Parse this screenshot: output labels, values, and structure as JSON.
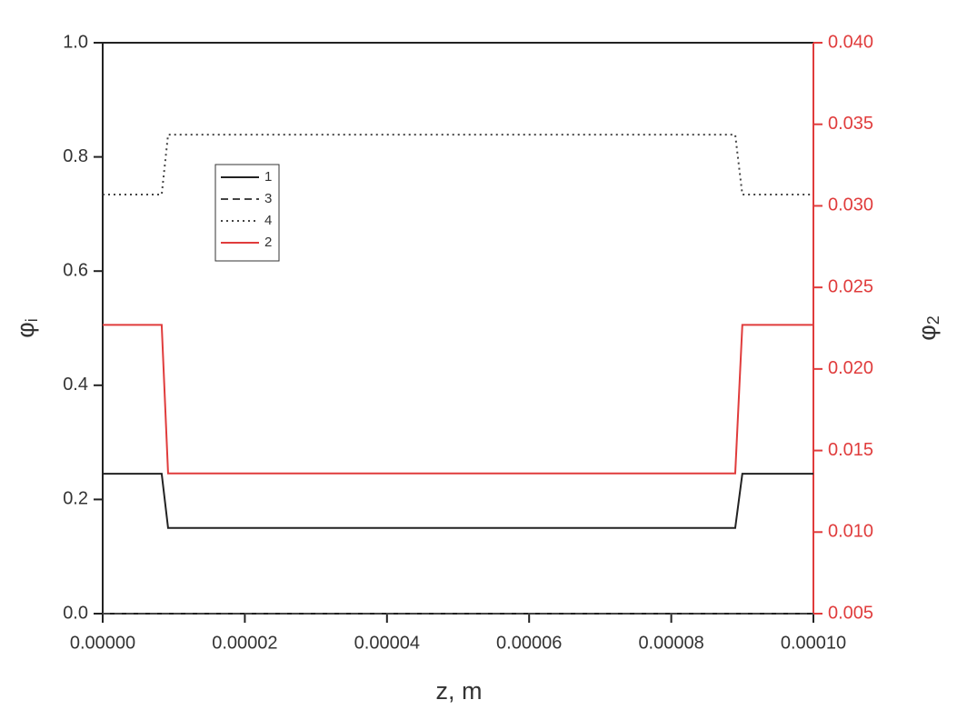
{
  "chart_data": {
    "type": "line",
    "x_label": "z, m",
    "y_label": {
      "text": "φ",
      "sub": "i"
    },
    "y2_label": {
      "text": "φ",
      "sub": "2"
    },
    "x": [
      0,
      8.3e-06,
      9.2e-06,
      8.9e-05,
      9e-05,
      0.0001
    ],
    "xlim": [
      0,
      0.0001
    ],
    "xticks": [
      {
        "value": 0,
        "label": "0.00000"
      },
      2e-05,
      4e-05,
      6e-05,
      8e-05,
      {
        "value": 0.0001,
        "label": "0.00010"
      }
    ],
    "ylim": [
      0,
      1
    ],
    "yticks": [
      {
        "value": 0,
        "label": "0.0"
      },
      0.2,
      0.4,
      0.6,
      0.8,
      {
        "value": 1,
        "label": "1.0"
      }
    ],
    "y2lim": [
      0.005,
      0.04
    ],
    "y2ticks": [
      0.005,
      {
        "value": 0.01,
        "label": "0.010"
      },
      0.015,
      {
        "value": 0.02,
        "label": "0.020"
      },
      0.025,
      {
        "value": 0.03,
        "label": "0.030"
      },
      0.035,
      {
        "value": 0.04,
        "label": "0.040"
      }
    ],
    "y2color": "#e03c3c",
    "series": [
      {
        "name": "1",
        "color": "#222222",
        "dash": "solid",
        "values": [
          0.245,
          0.245,
          0.15,
          0.15,
          0.245,
          0.245
        ]
      },
      {
        "name": "3",
        "color": "#444444",
        "dash": "dashed",
        "values": [
          0,
          0,
          0,
          0,
          0,
          0
        ]
      },
      {
        "name": "4",
        "color": "#444444",
        "dash": "dotted",
        "values": [
          0.734,
          0.734,
          0.839,
          0.839,
          0.734,
          0.734
        ]
      },
      {
        "name": "2",
        "color": "#e03c3c",
        "dash": "solid",
        "axis": "y2",
        "values": [
          0.0227,
          0.0227,
          0.0136,
          0.0136,
          0.0227,
          0.0227
        ]
      }
    ]
  }
}
